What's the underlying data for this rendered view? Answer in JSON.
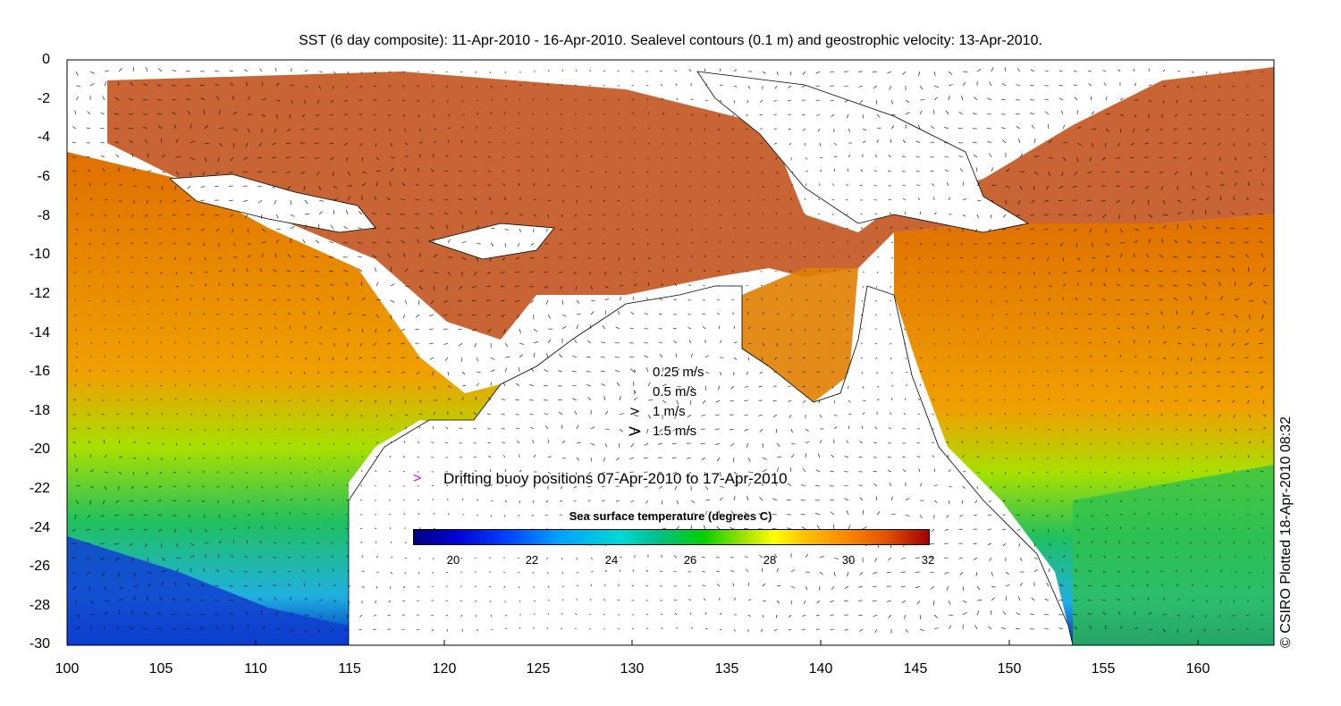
{
  "title": "SST (6 day composite): 11-Apr-2010 - 16-Apr-2010. Sealevel contours (0.1 m) and geostrophic velocity: 13-Apr-2010.",
  "axes": {
    "x_ticks": [
      "100",
      "105",
      "110",
      "115",
      "120",
      "125",
      "130",
      "135",
      "140",
      "145",
      "150",
      "155",
      "160"
    ],
    "y_ticks": [
      "0",
      "-2",
      "-4",
      "-6",
      "-8",
      "-10",
      "-12",
      "-14",
      "-16",
      "-18",
      "-20",
      "-22",
      "-24",
      "-26",
      "-28",
      "-30"
    ],
    "lon_range": [
      100,
      164
    ],
    "lat_range": [
      -30,
      0
    ]
  },
  "velocity_scale": [
    {
      "arrow": "›",
      "label": "0.25 m/s"
    },
    {
      "arrow": "›",
      "label": "0.5 m/s"
    },
    {
      "arrow": ">",
      "label": "1 m/s"
    },
    {
      "arrow": ">",
      "label": "1.5 m/s"
    }
  ],
  "buoy_legend": {
    "symbol": ">",
    "label": "Drifting buoy positions 07-Apr-2010 to 17-Apr-2010",
    "color": "#e000e0"
  },
  "colorbar": {
    "title": "Sea surface temperature (degrees C)",
    "ticks": [
      "20",
      "22",
      "24",
      "26",
      "28",
      "30",
      "32"
    ],
    "range": [
      19,
      32
    ]
  },
  "credit": "© CSIRO Plotted 18-Apr-2010 08:32"
}
